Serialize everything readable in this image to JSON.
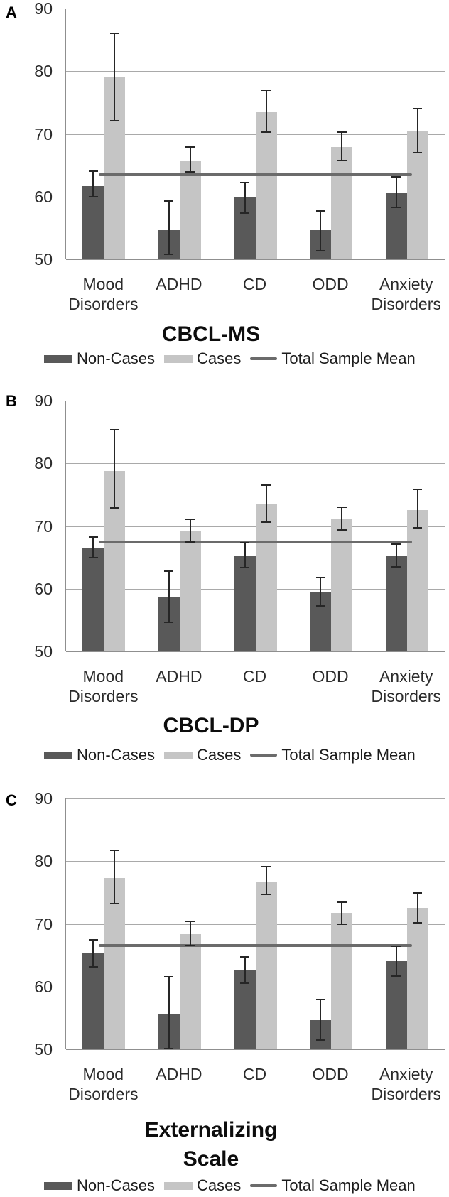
{
  "figure": {
    "panel_labels": [
      "A",
      "B",
      "C"
    ],
    "colors": {
      "non_cases_bar": "#595959",
      "cases_bar": "#c5c5c5",
      "mean_line": "#6b6b6b",
      "gridline": "#a9a9a9",
      "axis_line": "#8f8f8f",
      "error_bar": "#262626",
      "text": "#212121",
      "background": "#ffffff"
    }
  },
  "chart_data": [
    {
      "panel_label": "A",
      "type": "bar",
      "title": "CBCL-MS",
      "title_lines": [
        "CBCL-MS"
      ],
      "categories": [
        "Mood Disorders",
        "ADHD",
        "CD",
        "ODD",
        "Anxiety Disorders"
      ],
      "category_label_lines": [
        [
          "Mood",
          "Disorders"
        ],
        [
          "ADHD"
        ],
        [
          "CD"
        ],
        [
          "ODD"
        ],
        [
          "Anxiety",
          "Disorders"
        ]
      ],
      "ylim": [
        50,
        90
      ],
      "yticks": [
        90,
        80,
        70,
        60,
        50
      ],
      "grid": true,
      "legend_position": "bottom",
      "series": [
        {
          "name": "Non-Cases",
          "values": [
            61.7,
            54.7,
            60.0,
            54.7,
            60.6
          ],
          "error_low": [
            60.0,
            50.8,
            57.4,
            51.4,
            58.3
          ],
          "error_high": [
            64.0,
            59.3,
            62.2,
            57.7,
            63.1
          ]
        },
        {
          "name": "Cases",
          "values": [
            79.0,
            65.7,
            73.5,
            67.9,
            70.5
          ],
          "error_low": [
            72.1,
            63.9,
            70.3,
            65.7,
            67.0
          ],
          "error_high": [
            86.0,
            67.9,
            77.0,
            70.3,
            74.0
          ]
        }
      ],
      "mean_line": {
        "label": "Total Sample Mean",
        "value": 63.5
      },
      "legend": [
        "Non-Cases",
        "Cases",
        "Total Sample Mean"
      ]
    },
    {
      "panel_label": "B",
      "type": "bar",
      "title": "CBCL-DP",
      "title_lines": [
        "CBCL-DP"
      ],
      "categories": [
        "Mood Disorders",
        "ADHD",
        "CD",
        "ODD",
        "Anxiety Disorders"
      ],
      "category_label_lines": [
        [
          "Mood",
          "Disorders"
        ],
        [
          "ADHD"
        ],
        [
          "CD"
        ],
        [
          "ODD"
        ],
        [
          "Anxiety",
          "Disorders"
        ]
      ],
      "ylim": [
        50,
        90
      ],
      "yticks": [
        90,
        80,
        70,
        60,
        50
      ],
      "grid": true,
      "legend_position": "bottom",
      "series": [
        {
          "name": "Non-Cases",
          "values": [
            66.6,
            58.7,
            65.3,
            59.4,
            65.3
          ],
          "error_low": [
            65.0,
            54.7,
            63.4,
            57.2,
            63.5
          ],
          "error_high": [
            68.3,
            62.8,
            67.3,
            61.8,
            67.1
          ]
        },
        {
          "name": "Cases",
          "values": [
            78.8,
            69.3,
            73.4,
            71.2,
            72.6
          ],
          "error_low": [
            72.9,
            67.4,
            70.6,
            69.4,
            69.7
          ],
          "error_high": [
            85.3,
            71.1,
            76.5,
            73.0,
            75.8
          ]
        }
      ],
      "mean_line": {
        "label": "Total Sample Mean",
        "value": 67.4
      },
      "legend": [
        "Non-Cases",
        "Cases",
        "Total Sample Mean"
      ]
    },
    {
      "panel_label": "C",
      "type": "bar",
      "title": "Externalizing Scale",
      "title_lines": [
        "Externalizing",
        "Scale"
      ],
      "categories": [
        "Mood Disorders",
        "ADHD",
        "CD",
        "ODD",
        "Anxiety Disorders"
      ],
      "category_label_lines": [
        [
          "Mood",
          "Disorders"
        ],
        [
          "ADHD"
        ],
        [
          "CD"
        ],
        [
          "ODD"
        ],
        [
          "Anxiety",
          "Disorders"
        ]
      ],
      "ylim": [
        50,
        90
      ],
      "yticks": [
        90,
        80,
        70,
        60,
        50
      ],
      "grid": true,
      "legend_position": "bottom",
      "series": [
        {
          "name": "Non-Cases",
          "values": [
            65.3,
            55.5,
            62.7,
            54.7,
            64.1
          ],
          "error_low": [
            63.2,
            50.1,
            60.5,
            51.5,
            61.7
          ],
          "error_high": [
            67.4,
            61.6,
            64.7,
            57.9,
            66.4
          ]
        },
        {
          "name": "Cases",
          "values": [
            77.3,
            68.4,
            76.7,
            71.7,
            72.6
          ],
          "error_low": [
            73.2,
            66.6,
            74.7,
            69.9,
            70.2
          ],
          "error_high": [
            81.7,
            70.4,
            79.1,
            73.4,
            74.9
          ]
        }
      ],
      "mean_line": {
        "label": "Total Sample Mean",
        "value": 66.6
      },
      "legend": [
        "Non-Cases",
        "Cases",
        "Total Sample Mean"
      ]
    }
  ]
}
